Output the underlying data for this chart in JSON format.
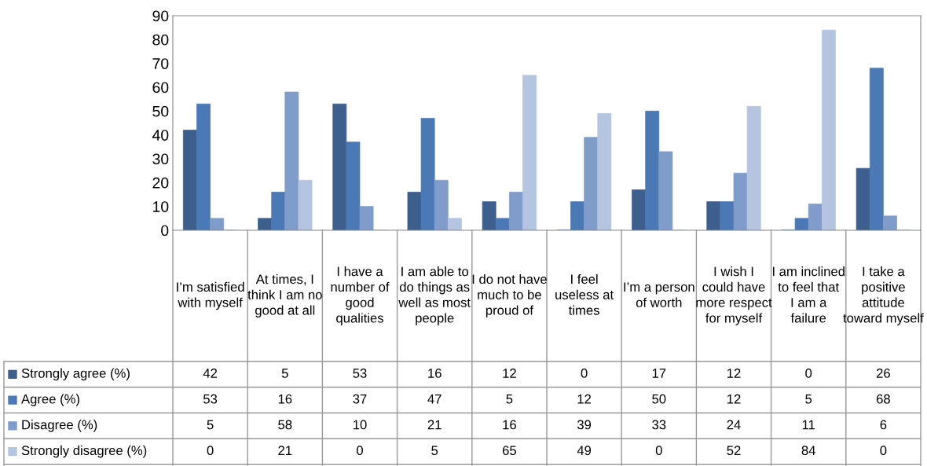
{
  "chart_data": {
    "type": "bar",
    "categories": [
      "I’m satisfied with myself",
      "At times, I think I am no good at all",
      "I have a number of good qualities",
      "I am able to do things as well as most people",
      "I do not have much to be proud of",
      "I feel useless at times",
      "I’m a person of worth",
      "I wish I could have more respect for myself",
      "I am inclined to feel that I am a failure",
      "I take a positive attitude toward myself"
    ],
    "series": [
      {
        "name": "Strongly agree (%)",
        "color": "#3c5f8e",
        "values": [
          42,
          5,
          53,
          16,
          12,
          0,
          17,
          12,
          0,
          26
        ]
      },
      {
        "name": "Agree (%)",
        "color": "#4a79b5",
        "values": [
          53,
          16,
          37,
          47,
          5,
          12,
          50,
          12,
          5,
          68
        ]
      },
      {
        "name": "Disagree (%)",
        "color": "#7f9cca",
        "values": [
          5,
          58,
          10,
          21,
          16,
          39,
          33,
          24,
          11,
          6
        ]
      },
      {
        "name": "Strongly disagree (%)",
        "color": "#b5c5e1",
        "values": [
          0,
          21,
          0,
          5,
          65,
          49,
          0,
          52,
          84,
          0
        ]
      }
    ],
    "ylim": [
      0,
      90
    ],
    "yticks": [
      0,
      10,
      20,
      30,
      40,
      50,
      60,
      70,
      80,
      90
    ],
    "grid": false,
    "data_labels": true,
    "legend": "bottom left"
  }
}
